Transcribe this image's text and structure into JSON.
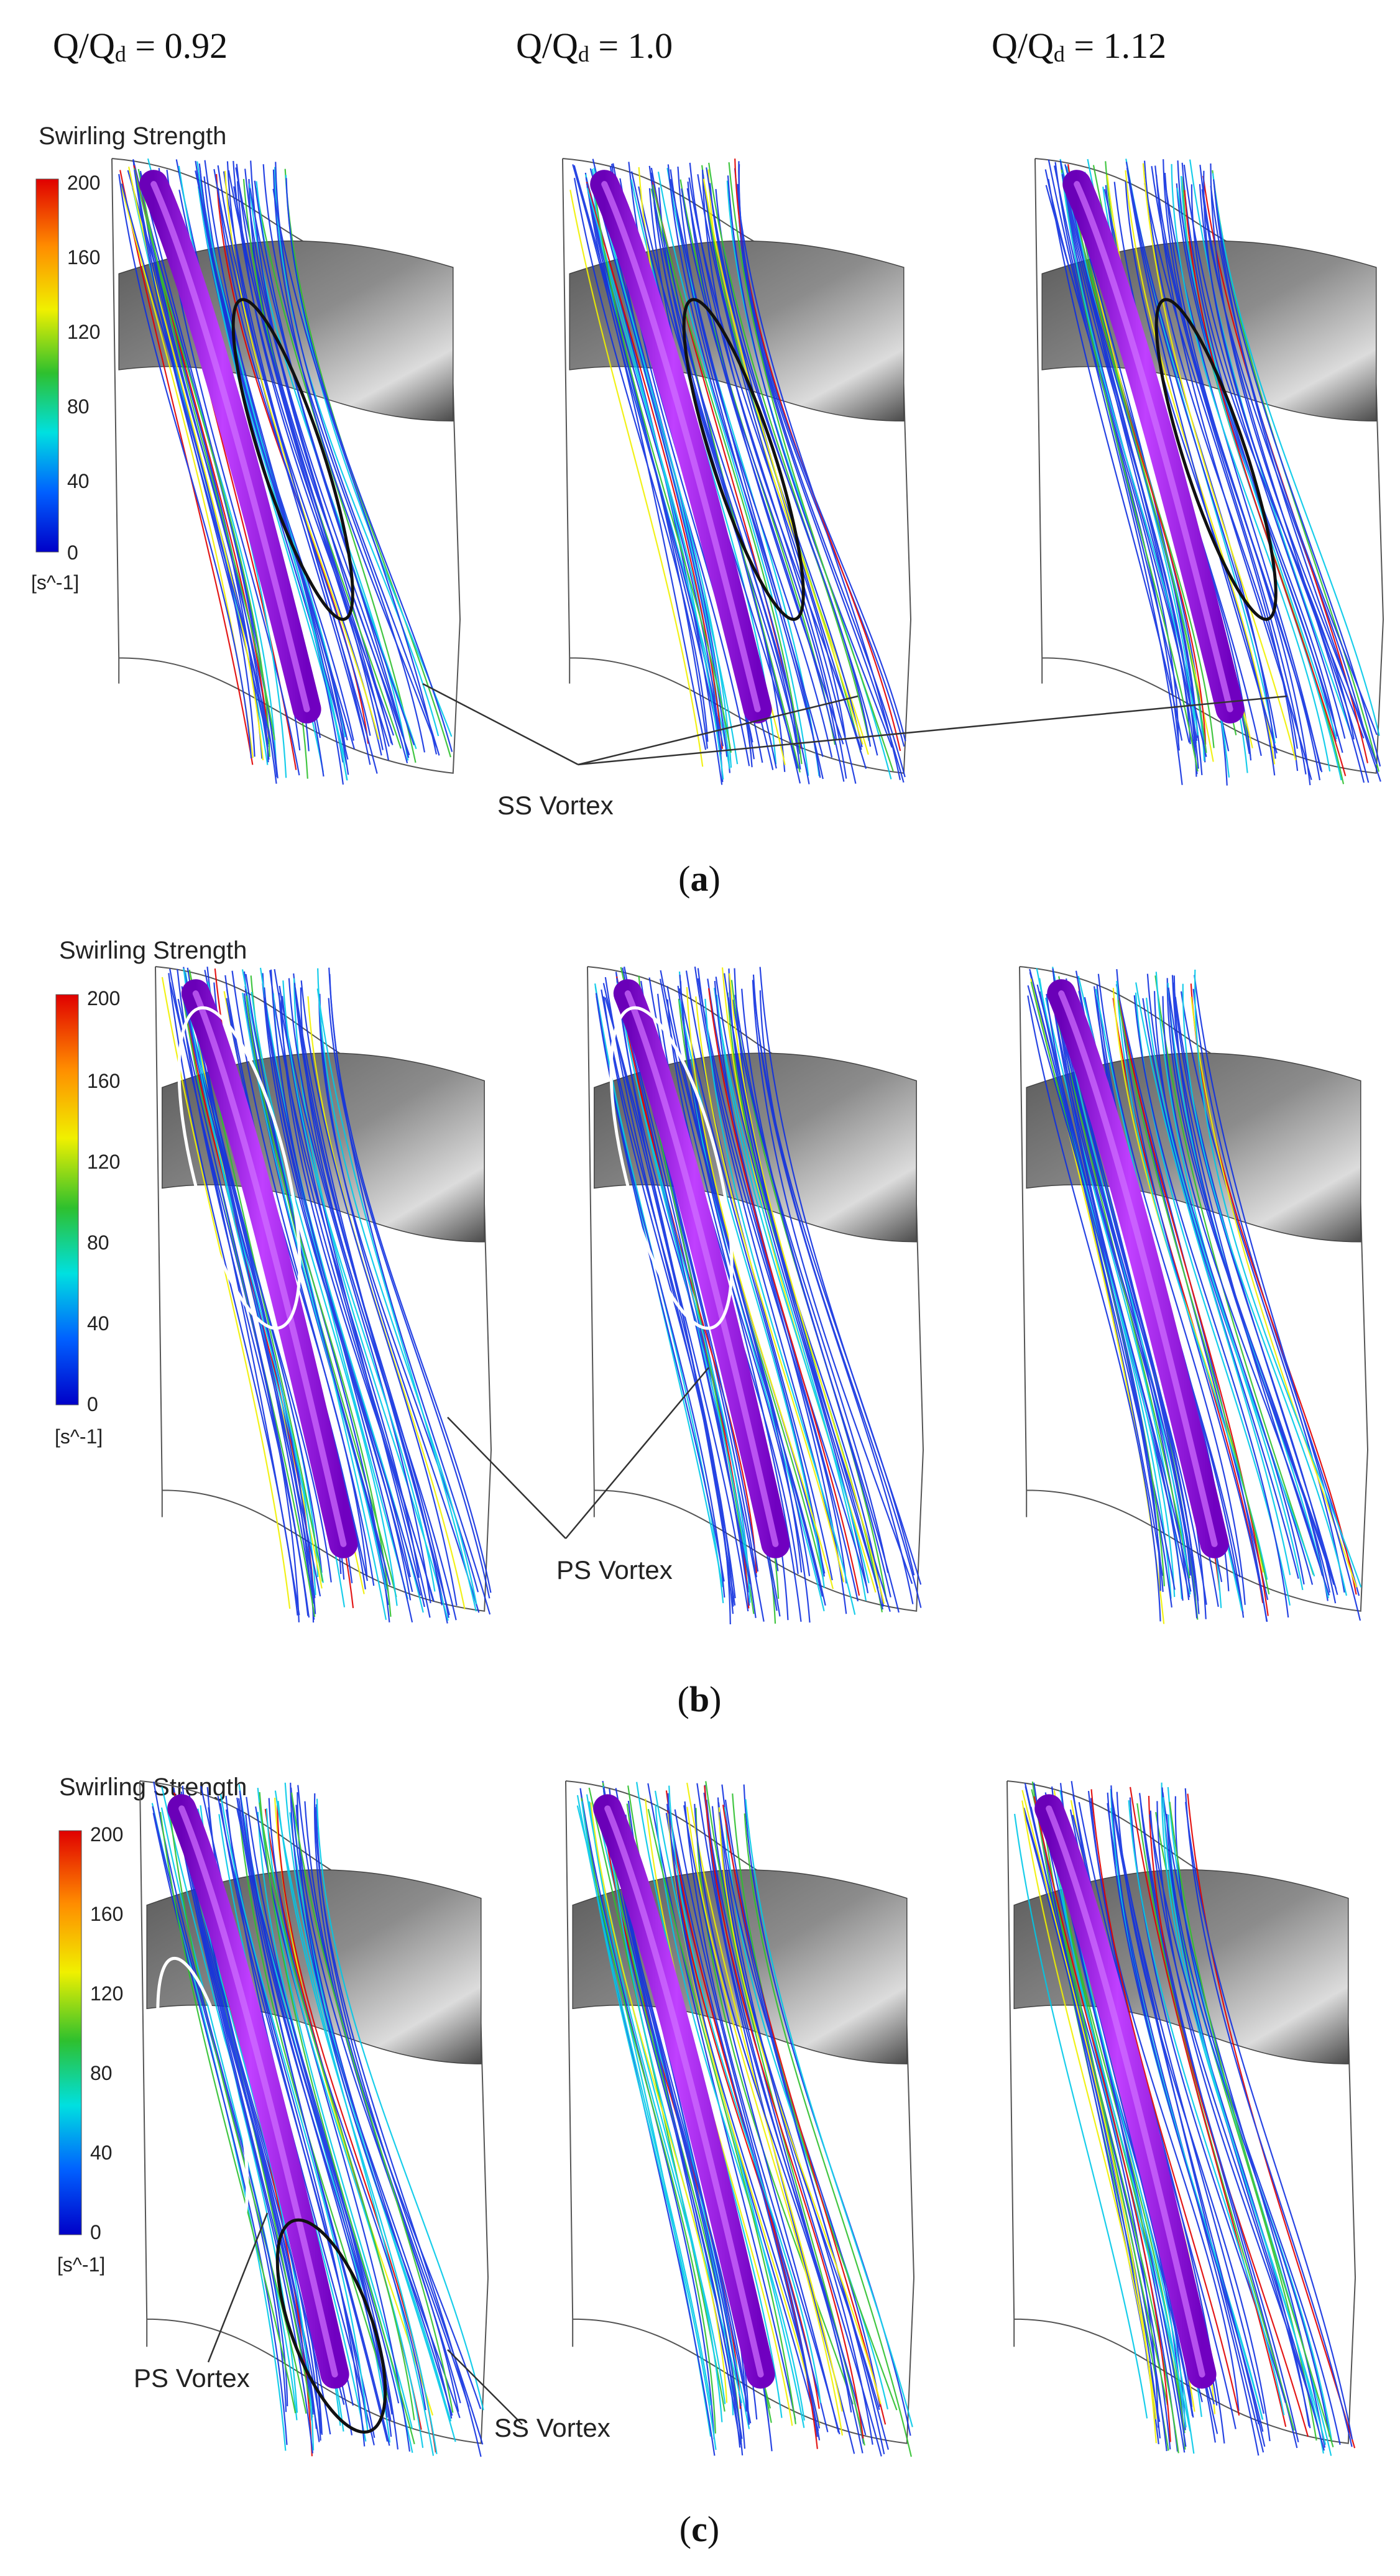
{
  "conditions": {
    "prefix": "Q/Q",
    "subscript": "d",
    "values": [
      " = 0.92",
      " = 1.0",
      " = 1.12"
    ]
  },
  "legend": {
    "title": "Swirling Strength",
    "ticks": [
      "200",
      "160",
      "120",
      "80",
      "40",
      "0"
    ],
    "unit": "[s^-1]",
    "colors": [
      "#e00000",
      "#ff8c00",
      "#f0f000",
      "#2ec02e",
      "#00e0e0",
      "#0060ff",
      "#0000c8"
    ]
  },
  "panels": [
    {
      "label": "a",
      "annotations": [
        "SS Vortex"
      ]
    },
    {
      "label": "b",
      "annotations": [
        "PS Vortex"
      ]
    },
    {
      "label": "c",
      "annotations": [
        "PS Vortex",
        "SS Vortex"
      ]
    }
  ],
  "colors": {
    "vortex_core": "#a000e8",
    "hub_surface": "#6e6e6e",
    "outline": "#333333"
  }
}
